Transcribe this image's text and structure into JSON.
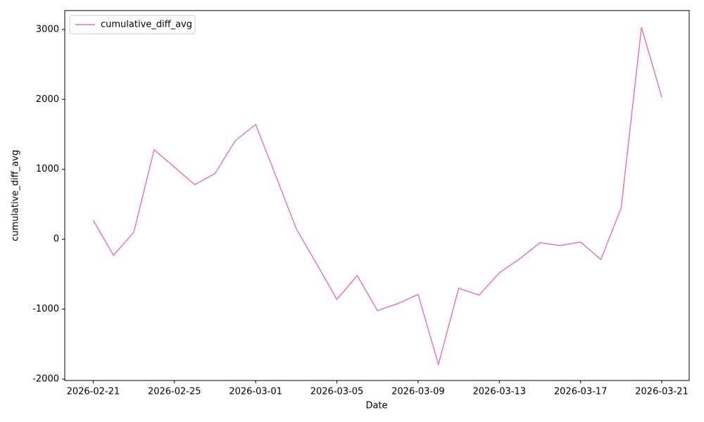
{
  "chart_data": {
    "type": "line",
    "x_label": "Date",
    "y_label": "cumulative_diff_avg",
    "x": [
      "2026-02-21",
      "2026-02-22",
      "2026-02-23",
      "2026-02-24",
      "2026-02-25",
      "2026-02-26",
      "2026-02-27",
      "2026-02-28",
      "2026-03-01",
      "2026-03-02",
      "2026-03-03",
      "2026-03-04",
      "2026-03-05",
      "2026-03-06",
      "2026-03-07",
      "2026-03-08",
      "2026-03-09",
      "2026-03-10",
      "2026-03-11",
      "2026-03-12",
      "2026-03-13",
      "2026-03-14",
      "2026-03-15",
      "2026-03-16",
      "2026-03-17",
      "2026-03-18",
      "2026-03-19",
      "2026-03-20",
      "2026-03-21"
    ],
    "series": [
      {
        "name": "cumulative_diff_avg",
        "color": "#e377c2",
        "values": [
          270,
          -230,
          100,
          1280,
          1030,
          780,
          940,
          1410,
          1640,
          900,
          150,
          -350,
          -860,
          -520,
          -1020,
          -920,
          -790,
          -1790,
          -700,
          -800,
          -480,
          -280,
          -50,
          -90,
          -40,
          -290,
          450,
          3030,
          2030
        ]
      }
    ],
    "xlim": [
      "2026-02-19T14:24",
      "2026-03-22T08:24"
    ],
    "xticks": [
      "2026-02-21",
      "2026-02-25",
      "2026-03-01",
      "2026-03-05",
      "2026-03-09",
      "2026-03-13",
      "2026-03-17",
      "2026-03-21"
    ],
    "ylim": [
      -2020,
      3270
    ],
    "yticks": [
      -2000,
      -1000,
      0,
      1000,
      2000,
      3000
    ],
    "legend": "upper left",
    "grid": false
  }
}
